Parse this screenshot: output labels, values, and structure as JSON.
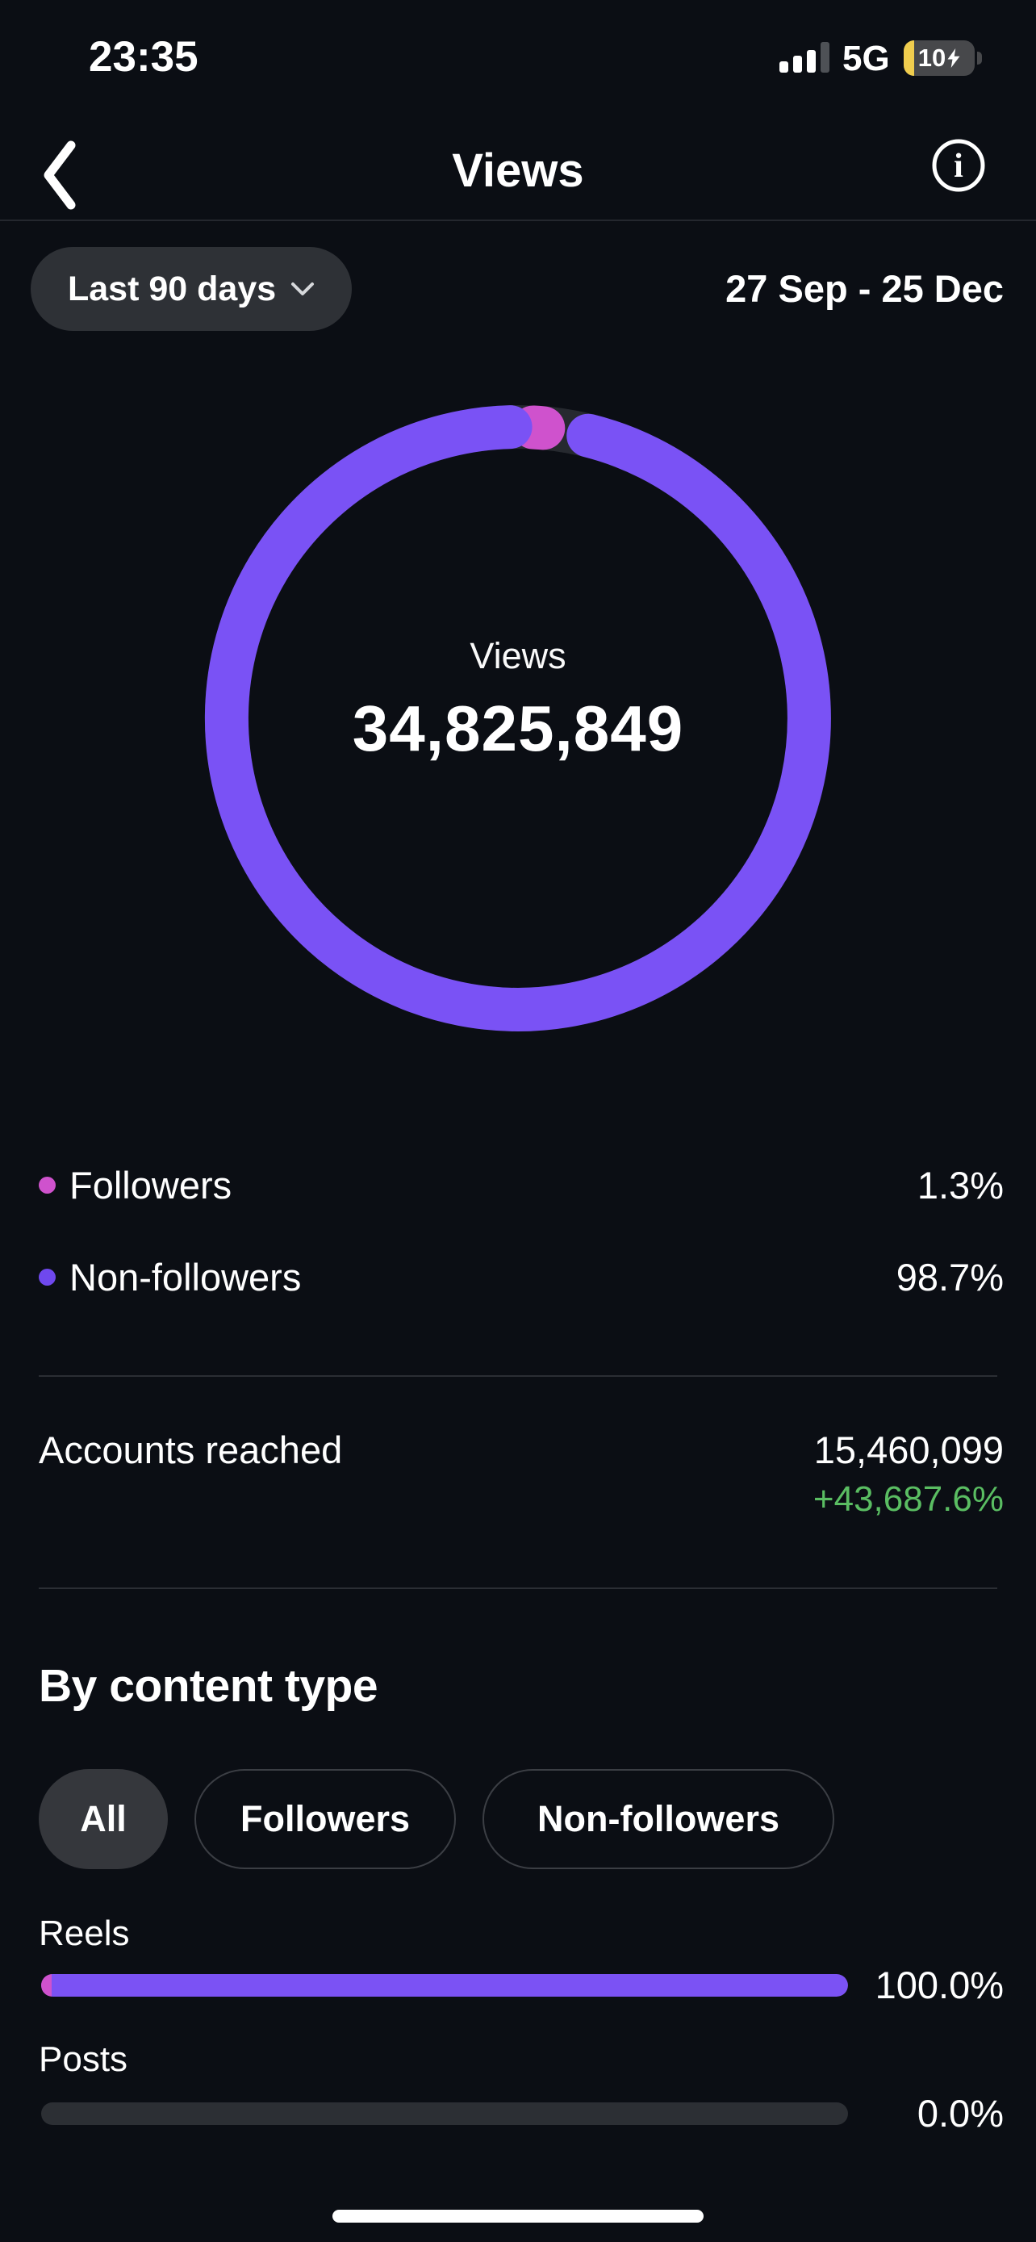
{
  "status_bar": {
    "time": "23:35",
    "network": "5G",
    "battery_percent": "10"
  },
  "header": {
    "title": "Views"
  },
  "filter": {
    "range_button_label": "Last 90 days",
    "date_range": "27 Sep - 25 Dec"
  },
  "chart_data": {
    "type": "pie",
    "style": "donut",
    "center_label": "Views",
    "center_value": "34,825,849",
    "slices": [
      {
        "label": "Followers",
        "value": 1.3,
        "display": "1.3%",
        "color": "#cf52cd"
      },
      {
        "label": "Non-followers",
        "value": 98.7,
        "display": "98.7%",
        "color": "#7a52f5"
      }
    ],
    "legend_position": "below"
  },
  "legend": {
    "items": [
      {
        "label": "Followers",
        "pct": "1.3%"
      },
      {
        "label": "Non-followers",
        "pct": "98.7%"
      }
    ]
  },
  "accounts_reached": {
    "label": "Accounts reached",
    "value": "15,460,099",
    "change": "+43,687.6%"
  },
  "by_content_type": {
    "heading": "By content type",
    "tabs": [
      {
        "label": "All",
        "selected": true
      },
      {
        "label": "Followers",
        "selected": false
      },
      {
        "label": "Non-followers",
        "selected": false
      }
    ],
    "bars": [
      {
        "label": "Reels",
        "value": 100.0,
        "pct_label": "100.0%",
        "followers_share": 1.3
      },
      {
        "label": "Posts",
        "value": 0.0,
        "pct_label": "0.0%",
        "followers_share": 0
      }
    ]
  },
  "colors": {
    "background": "#0b0e14",
    "accent_purple": "#7a52f5",
    "accent_pink": "#cf52cd",
    "positive_green": "#5abd62",
    "battery_low_yellow": "#f0cd4e"
  }
}
